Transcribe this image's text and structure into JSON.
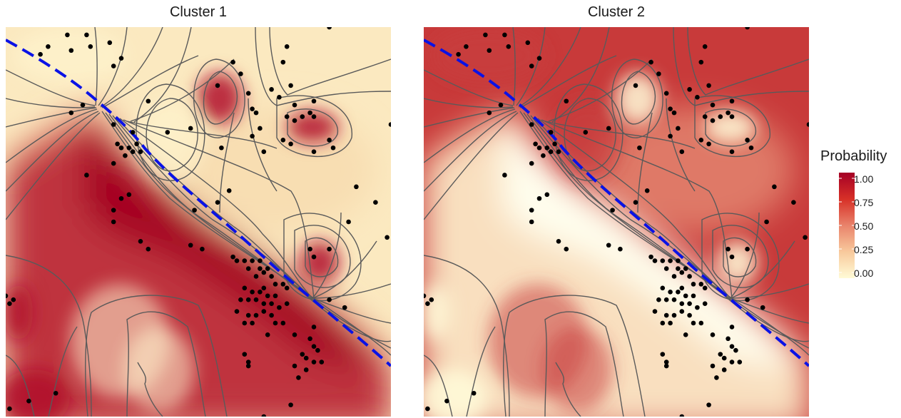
{
  "chart_data": [
    {
      "type": "heatmap",
      "title": "Cluster 1",
      "color_scale": "Probability high in lower-left band (red), low in upper region (cream)",
      "boundary_line": {
        "style": "dashed",
        "color": "#0a12e6"
      },
      "points": [
        [
          0.16,
          0.02
        ],
        [
          0.21,
          0.02
        ],
        [
          0.27,
          0.04
        ],
        [
          0.84,
          0.0
        ],
        [
          0.11,
          0.05
        ],
        [
          0.09,
          0.07
        ],
        [
          0.17,
          0.06
        ],
        [
          0.22,
          0.05
        ],
        [
          0.3,
          0.08
        ],
        [
          0.28,
          0.1
        ],
        [
          0.73,
          0.05
        ],
        [
          0.72,
          0.09
        ],
        [
          0.59,
          0.09
        ],
        [
          0.61,
          0.12
        ],
        [
          0.55,
          0.15
        ],
        [
          0.74,
          0.15
        ],
        [
          0.69,
          0.16
        ],
        [
          0.63,
          0.17
        ],
        [
          0.71,
          0.18
        ],
        [
          0.75,
          0.2
        ],
        [
          0.8,
          0.19
        ],
        [
          0.79,
          0.22
        ],
        [
          0.64,
          0.21
        ],
        [
          0.66,
          0.26
        ],
        [
          0.73,
          0.23
        ],
        [
          0.75,
          0.24
        ],
        [
          0.77,
          0.23
        ],
        [
          0.8,
          0.23
        ],
        [
          0.65,
          0.22
        ],
        [
          0.37,
          0.19
        ],
        [
          0.2,
          0.2
        ],
        [
          0.17,
          0.22
        ],
        [
          0.28,
          0.25
        ],
        [
          0.33,
          0.27
        ],
        [
          0.42,
          0.27
        ],
        [
          0.48,
          0.26
        ],
        [
          0.64,
          0.28
        ],
        [
          0.72,
          0.29
        ],
        [
          0.74,
          0.3
        ],
        [
          0.84,
          0.29
        ],
        [
          0.67,
          0.32
        ],
        [
          0.8,
          0.32
        ],
        [
          0.85,
          0.31
        ],
        [
          0.56,
          0.31
        ],
        [
          1.0,
          0.25
        ],
        [
          0.29,
          0.3
        ],
        [
          0.3,
          0.31
        ],
        [
          0.32,
          0.31
        ],
        [
          0.33,
          0.32
        ],
        [
          0.34,
          0.3
        ],
        [
          0.35,
          0.32
        ],
        [
          0.31,
          0.33
        ],
        [
          0.28,
          0.35
        ],
        [
          0.21,
          0.38
        ],
        [
          0.58,
          0.42
        ],
        [
          0.49,
          0.47
        ],
        [
          0.3,
          0.44
        ],
        [
          0.32,
          0.43
        ],
        [
          0.28,
          0.47
        ],
        [
          0.28,
          0.5
        ],
        [
          0.55,
          0.45
        ],
        [
          0.91,
          0.41
        ],
        [
          0.96,
          0.45
        ],
        [
          0.89,
          0.5
        ],
        [
          0.99,
          0.54
        ],
        [
          0.35,
          0.55
        ],
        [
          0.37,
          0.57
        ],
        [
          0.48,
          0.56
        ],
        [
          0.51,
          0.57
        ],
        [
          0.84,
          0.57
        ],
        [
          0.79,
          0.57
        ],
        [
          0.8,
          0.59
        ],
        [
          0.59,
          0.59
        ],
        [
          0.6,
          0.6
        ],
        [
          0.62,
          0.6
        ],
        [
          0.64,
          0.6
        ],
        [
          0.66,
          0.6
        ],
        [
          0.63,
          0.62
        ],
        [
          0.66,
          0.62
        ],
        [
          0.68,
          0.62
        ],
        [
          0.67,
          0.63
        ],
        [
          0.69,
          0.64
        ],
        [
          0.65,
          0.64
        ],
        [
          0.7,
          0.66
        ],
        [
          0.72,
          0.66
        ],
        [
          0.73,
          0.67
        ],
        [
          0.67,
          0.67
        ],
        [
          0.62,
          0.67
        ],
        [
          0.64,
          0.68
        ],
        [
          0.66,
          0.68
        ],
        [
          0.68,
          0.69
        ],
        [
          0.7,
          0.69
        ],
        [
          0.61,
          0.7
        ],
        [
          0.63,
          0.7
        ],
        [
          0.65,
          0.7
        ],
        [
          0.67,
          0.71
        ],
        [
          0.69,
          0.71
        ],
        [
          0.71,
          0.72
        ],
        [
          0.73,
          0.71
        ],
        [
          0.6,
          0.73
        ],
        [
          0.63,
          0.74
        ],
        [
          0.65,
          0.74
        ],
        [
          0.67,
          0.73
        ],
        [
          0.69,
          0.74
        ],
        [
          0.62,
          0.76
        ],
        [
          0.64,
          0.76
        ],
        [
          0.7,
          0.76
        ],
        [
          0.72,
          0.76
        ],
        [
          0.84,
          0.7
        ],
        [
          0.88,
          0.72
        ],
        [
          0.8,
          0.77
        ],
        [
          0.68,
          0.79
        ],
        [
          0.75,
          0.79
        ],
        [
          0.79,
          0.8
        ],
        [
          0.8,
          0.82
        ],
        [
          0.81,
          0.83
        ],
        [
          0.77,
          0.84
        ],
        [
          0.78,
          0.85
        ],
        [
          0.62,
          0.84
        ],
        [
          0.63,
          0.86
        ],
        [
          0.63,
          0.87
        ],
        [
          0.75,
          0.87
        ],
        [
          0.8,
          0.86
        ],
        [
          0.82,
          0.86
        ],
        [
          0.78,
          0.88
        ],
        [
          0.76,
          0.9
        ],
        [
          0.0,
          0.69
        ],
        [
          0.01,
          0.71
        ],
        [
          0.02,
          0.7
        ],
        [
          0.13,
          0.94
        ],
        [
          0.06,
          0.96
        ],
        [
          0.01,
          0.98
        ],
        [
          0.74,
          0.97
        ],
        [
          0.67,
          1.0
        ]
      ]
    },
    {
      "type": "heatmap",
      "title": "Cluster 2",
      "color_scale": "Probability high in upper region (red), low in lower-left band (cream)",
      "boundary_line": {
        "style": "dashed",
        "color": "#0a12e6"
      }
    }
  ],
  "legend": {
    "title": "Probability",
    "ticks": [
      "1.00",
      "0.75",
      "0.50",
      "0.25",
      "0.00"
    ],
    "colors": [
      "#a50026",
      "#d73027",
      "#e9836b",
      "#f8c99c",
      "#fffbd6"
    ]
  },
  "colors": {
    "high": "#b0122a",
    "mid": "#e8947a",
    "low": "#fffcd9",
    "contour": "#5a5a5a",
    "boundary": "#0a12e6",
    "point": "#000000"
  }
}
